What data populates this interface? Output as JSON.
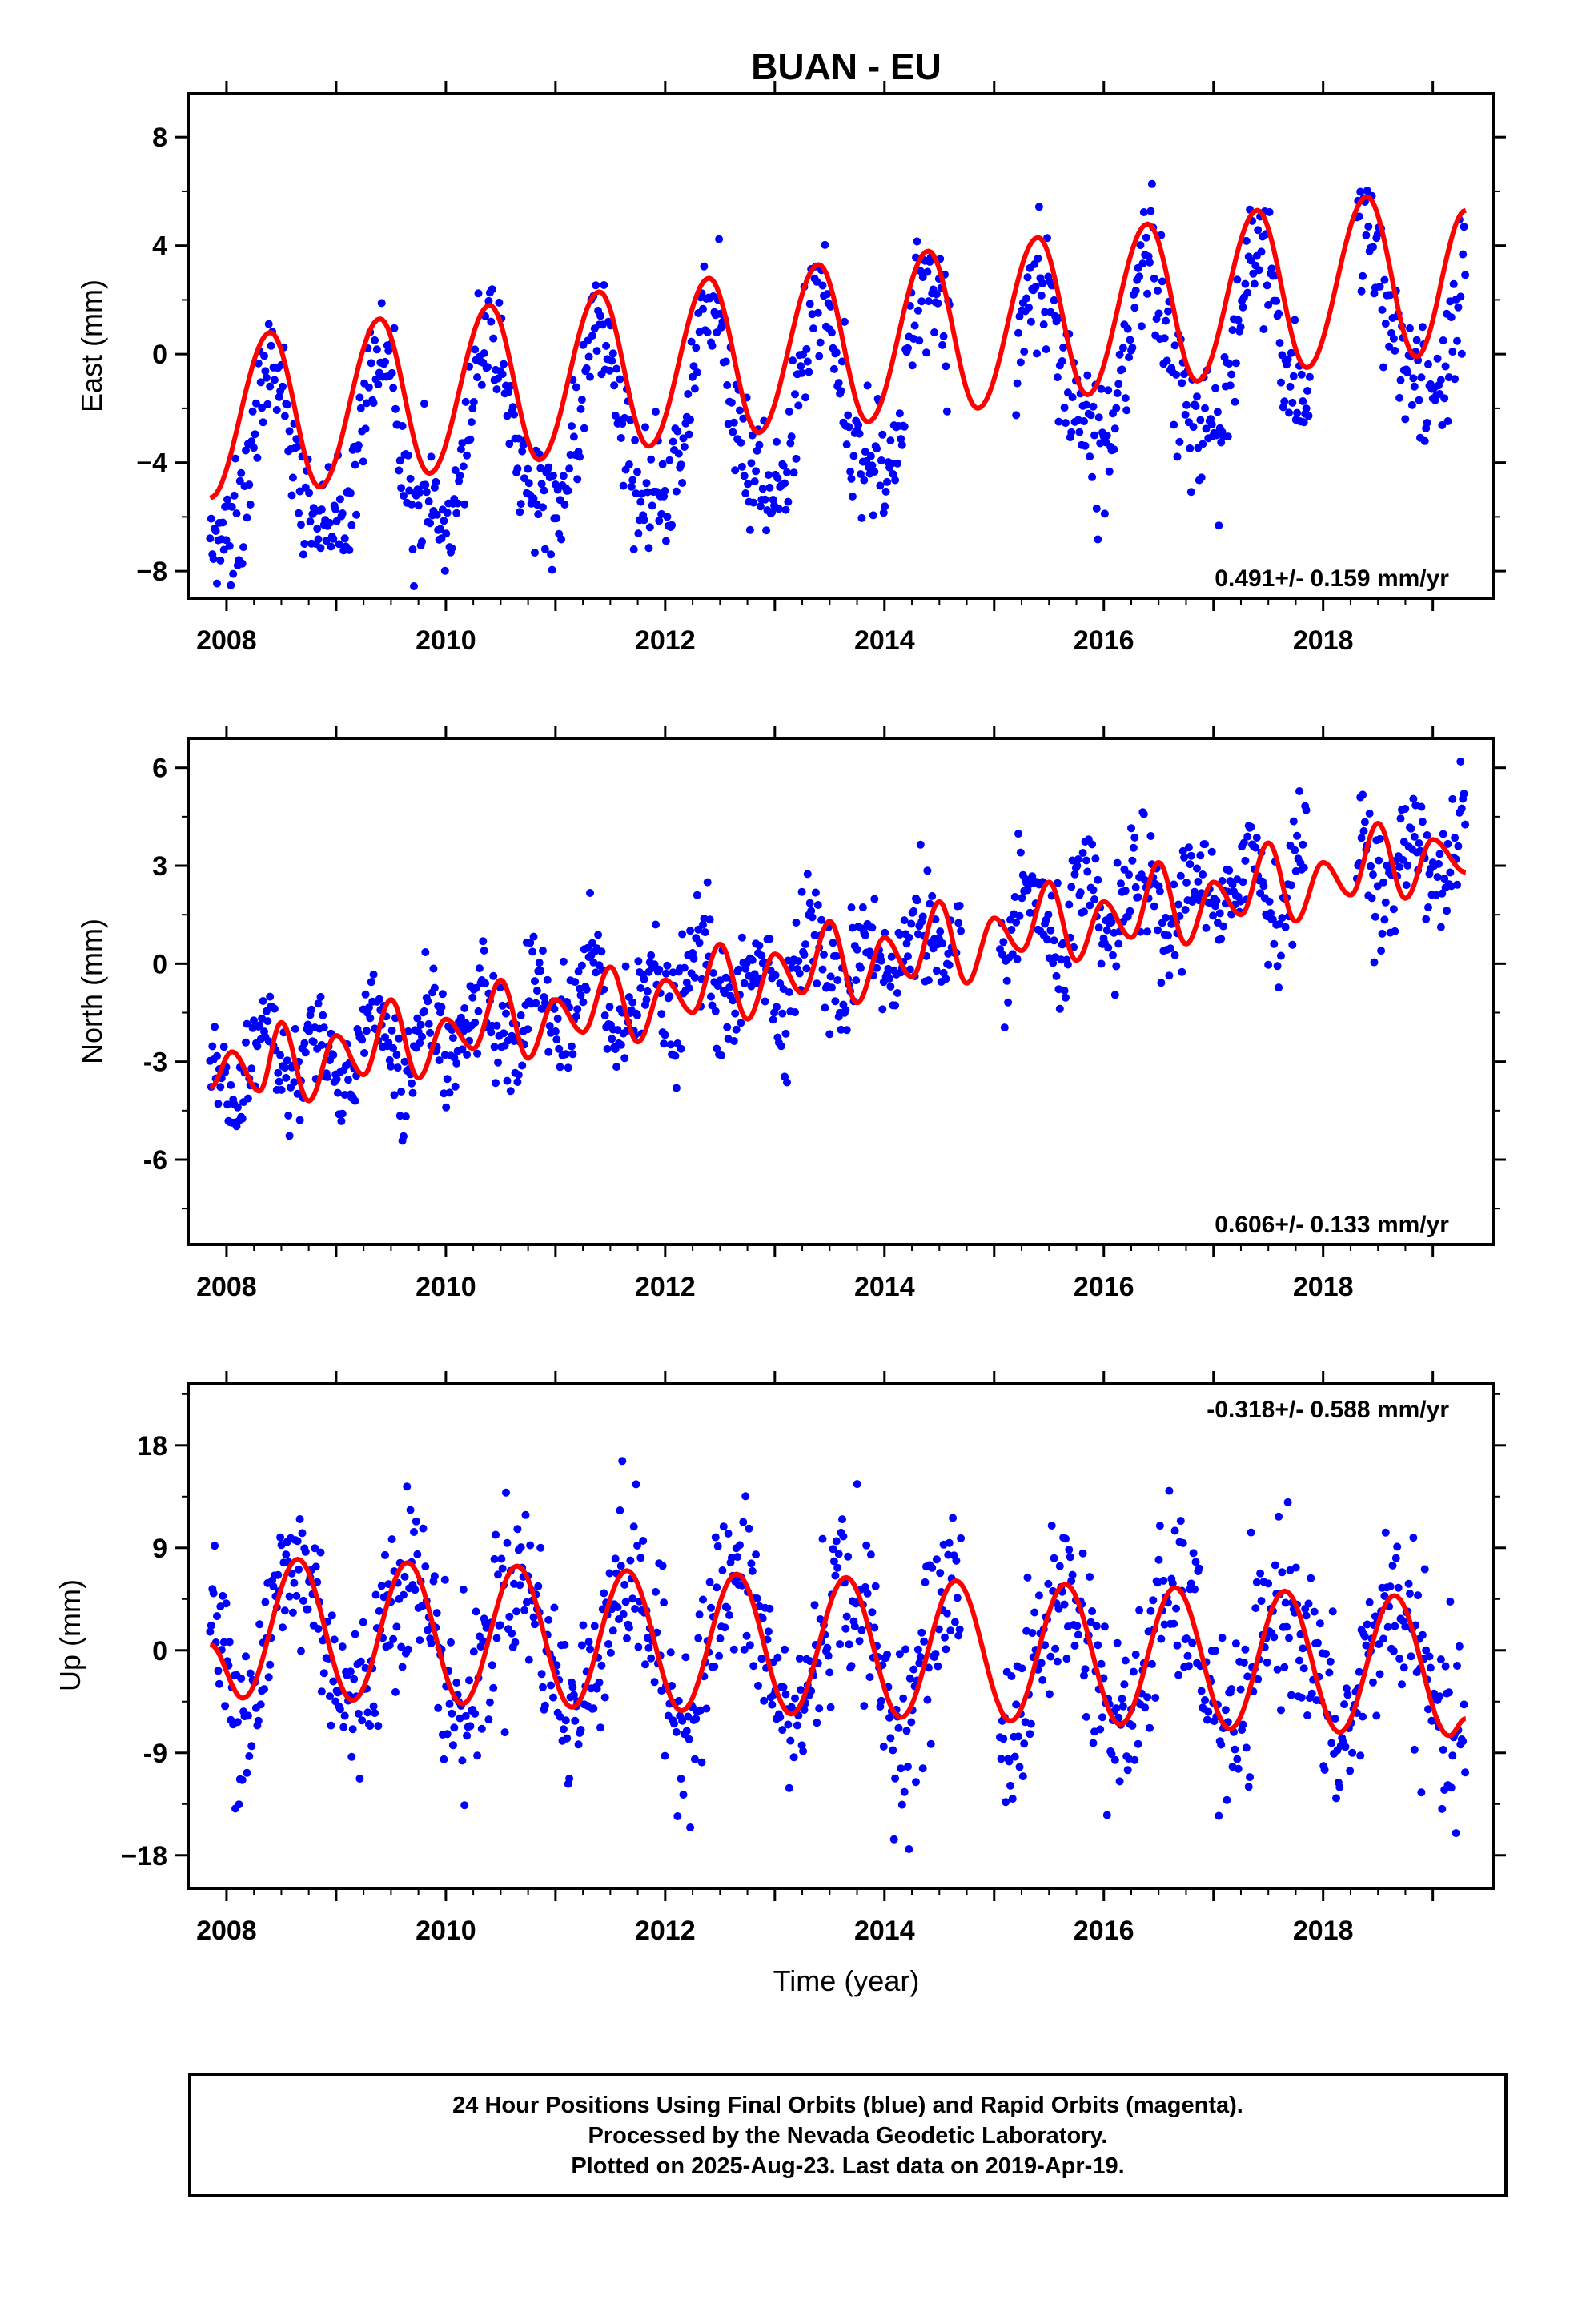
{
  "title": "BUAN - EU",
  "xlabel": "Time (year)",
  "x_ticks": [
    "2008",
    "2010",
    "2012",
    "2014",
    "2016",
    "2018"
  ],
  "caption": {
    "line1": "24 Hour Positions Using Final Orbits (blue) and Rapid Orbits (magenta).",
    "line2": "Processed by the Nevada Geodetic Laboratory.",
    "line3": "Plotted on 2025-Aug-23. Last data on 2019-Apr-19."
  },
  "colors": {
    "data": "#0000ff",
    "model": "#ff0000",
    "frame": "#000000"
  },
  "chart_data": [
    {
      "type": "scatter",
      "ylabel": "East (mm)",
      "rate": "0.491+/- 0.159 mm/yr",
      "x_range": [
        2007.65,
        2019.55
      ],
      "ylim": [
        -9.0,
        9.6
      ],
      "y_ticks": [
        8,
        4,
        0,
        -4,
        -8
      ],
      "y_tick_labels": [
        "8",
        "4",
        "0",
        "−4",
        "−8"
      ],
      "series": [
        {
          "role": "observations",
          "color": "#0000ff",
          "model": {
            "start": 2007.85,
            "end": 2019.3,
            "offset": -4.42,
            "trend": 0.491,
            "amp1": 3.2,
            "phase1": 2008.16,
            "amp2": 0.9,
            "phase2": 2008.26
          }
        },
        {
          "role": "fit",
          "color": "#ff0000",
          "x": [
            2007.85,
            2008.4,
            2008.85,
            2009.4,
            2009.85,
            2010.4,
            2010.85,
            2011.4,
            2011.85,
            2012.4,
            2012.85,
            2013.4,
            2013.85,
            2014.4,
            2014.85,
            2015.4,
            2015.85,
            2016.4,
            2016.85,
            2017.4,
            2017.85,
            2018.4,
            2018.85,
            2019.3
          ],
          "y": [
            -5.3,
            0.8,
            -4.9,
            1.3,
            -4.4,
            1.8,
            -3.9,
            2.3,
            -3.4,
            2.8,
            -2.9,
            3.3,
            -2.5,
            3.8,
            -2.0,
            4.3,
            -1.5,
            4.8,
            -1.0,
            5.3,
            -0.5,
            5.8,
            -0.1,
            5.3
          ]
        }
      ]
    },
    {
      "type": "scatter",
      "ylabel": "North (mm)",
      "rate": "0.606+/- 0.133 mm/yr",
      "x_range": [
        2007.65,
        2019.55
      ],
      "ylim": [
        -8.6,
        6.9
      ],
      "y_ticks": [
        6,
        3,
        0,
        -3,
        -6
      ],
      "y_tick_labels": [
        "6",
        "3",
        "0",
        "-3",
        "-6"
      ],
      "series": [
        {
          "role": "observations",
          "color": "#0000ff",
          "model": {
            "start": 2007.85,
            "end": 2019.3,
            "offset": -3.4,
            "trend": 0.606,
            "amp1": 0.2,
            "phase1": 2008.0,
            "amp2": 1.1,
            "phase2": 2008.2
          }
        },
        {
          "role": "fit",
          "color": "#ff0000",
          "x": [
            2007.85,
            2008.05,
            2008.3,
            2008.5,
            2008.75,
            2009.0,
            2009.25,
            2009.5,
            2009.75,
            2010.0,
            2010.25,
            2010.5,
            2010.75,
            2011.0,
            2011.25,
            2011.5,
            2011.75,
            2012.0,
            2012.25,
            2012.5,
            2012.75,
            2013.0,
            2013.25,
            2013.5,
            2013.75,
            2014.0,
            2014.25,
            2014.5,
            2014.75,
            2015.0,
            2015.25,
            2015.5,
            2015.75,
            2016.0,
            2016.25,
            2016.5,
            2016.75,
            2017.0,
            2017.25,
            2017.5,
            2017.75,
            2018.0,
            2018.25,
            2018.5,
            2018.75,
            2019.0,
            2019.3
          ],
          "y": [
            -3.8,
            -2.7,
            -3.9,
            -1.8,
            -4.2,
            -2.2,
            -3.4,
            -1.1,
            -3.5,
            -1.7,
            -2.6,
            -0.5,
            -2.9,
            -1.1,
            -2.1,
            -0.1,
            -2.4,
            -0.5,
            -1.5,
            0.6,
            -1.7,
            0.3,
            -0.9,
            1.3,
            -1.2,
            0.8,
            -0.4,
            1.9,
            -0.6,
            1.4,
            0.4,
            2.5,
            0.1,
            1.9,
            0.8,
            3.1,
            0.6,
            2.5,
            1.5,
            3.7,
            1.3,
            3.1,
            2.1,
            4.3,
            2.0,
            3.8,
            2.8
          ]
        }
      ]
    },
    {
      "type": "scatter",
      "ylabel": "Up (mm)",
      "rate": "-0.318+/- 0.588 mm/yr",
      "x_range": [
        2007.65,
        2019.55
      ],
      "ylim": [
        -20.9,
        23.4
      ],
      "y_ticks": [
        18,
        9,
        0,
        -9,
        -18
      ],
      "y_tick_labels": [
        "18",
        "9",
        "0",
        "-9",
        "−18"
      ],
      "series": [
        {
          "role": "observations",
          "color": "#0000ff",
          "model": {
            "start": 2007.85,
            "end": 2019.3,
            "offset": 1.8,
            "trend": -0.318,
            "amp1": 6.1,
            "phase1": 2008.4,
            "amp2": 0.4,
            "phase2": 2008.3
          }
        },
        {
          "role": "fit",
          "color": "#ff0000",
          "x": [
            2007.85,
            2008.15,
            2008.65,
            2009.15,
            2009.65,
            2010.15,
            2010.65,
            2011.15,
            2011.65,
            2012.15,
            2012.65,
            2013.15,
            2013.65,
            2014.15,
            2014.65,
            2015.15,
            2015.65,
            2016.15,
            2016.65,
            2017.15,
            2017.65,
            2018.15,
            2018.65,
            2019.15,
            2019.3
          ],
          "y": [
            0.5,
            -4.2,
            8.0,
            -4.4,
            7.7,
            -4.7,
            7.4,
            -5.0,
            7.0,
            -5.3,
            6.7,
            -5.6,
            6.4,
            -5.9,
            6.1,
            -6.2,
            5.8,
            -6.5,
            5.5,
            -6.9,
            5.2,
            -7.2,
            4.8,
            -7.5,
            -6.0
          ]
        }
      ]
    }
  ]
}
